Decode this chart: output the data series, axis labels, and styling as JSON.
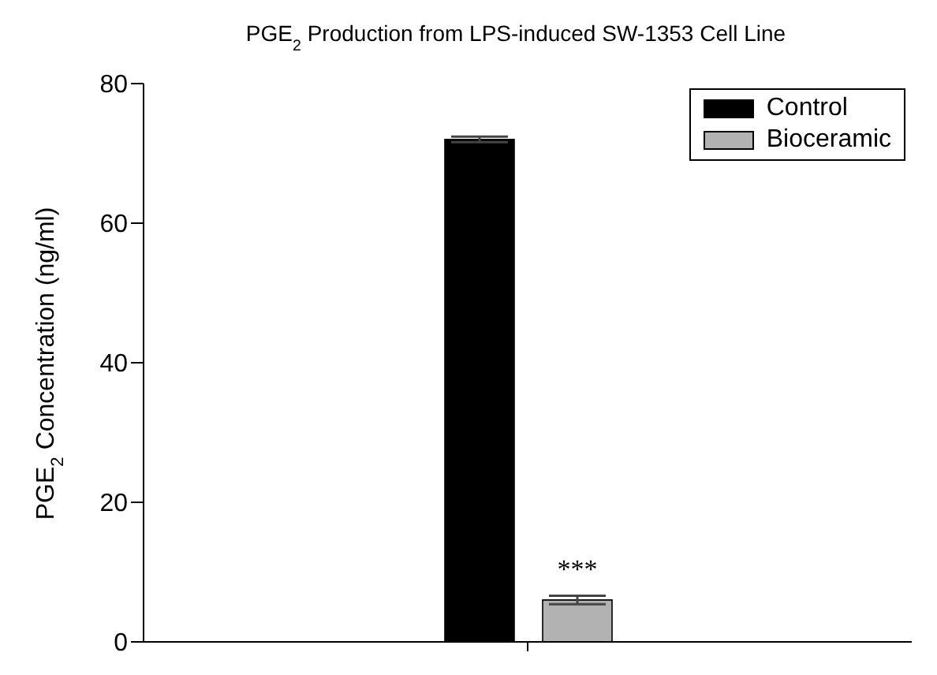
{
  "chart_data": {
    "type": "bar",
    "title": "PGE$_{2}$ Production from LPS-induced SW-1353 Cell Line",
    "ylabel": "PGE$_{2}$ Concentration (ng/ml)",
    "categories": [
      null
    ],
    "series": [
      {
        "name": "Control",
        "color": "#000000",
        "values": [
          72
        ],
        "errors": [
          0.4
        ]
      },
      {
        "name": "Bioceramic",
        "color": "#b2b2b2",
        "values": [
          6
        ],
        "errors": [
          0.6
        ]
      }
    ],
    "ylim": [
      0,
      80
    ],
    "yticks": [
      0,
      20,
      40,
      60,
      80
    ],
    "legend": "top right",
    "annotations": [
      "***"
    ]
  }
}
